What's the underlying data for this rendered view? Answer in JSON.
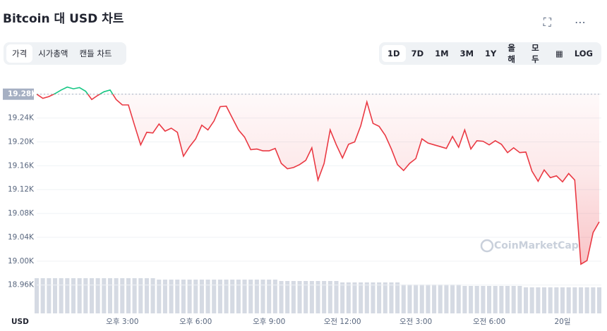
{
  "header": {
    "title": "Bitcoin 대 USD 차트",
    "tabs": [
      "가격",
      "시가총액",
      "캔들 차트"
    ],
    "ranges": [
      "1D",
      "7D",
      "1M",
      "3M",
      "1Y",
      "올해",
      "모두"
    ],
    "log": "LOG"
  },
  "chart_data": {
    "type": "line",
    "watermark": "CoinMarketCap",
    "y_unit": "USD",
    "categories": [
      null,
      null,
      null,
      null,
      null,
      null,
      null,
      null,
      null,
      null,
      null,
      null,
      null,
      null,
      "오후 3:00",
      null,
      null,
      null,
      null,
      null,
      null,
      null,
      null,
      null,
      null,
      null,
      "오후 6:00",
      null,
      null,
      null,
      null,
      null,
      null,
      null,
      null,
      null,
      null,
      null,
      "오후 9:00",
      null,
      null,
      null,
      null,
      null,
      null,
      null,
      null,
      null,
      null,
      null,
      "오전 12:00",
      null,
      null,
      null,
      null,
      null,
      null,
      null,
      null,
      null,
      null,
      null,
      "오전 3:00",
      null,
      null,
      null,
      null,
      null,
      null,
      null,
      null,
      null,
      null,
      null,
      "오전 6:00",
      null,
      null,
      null,
      null,
      null,
      null,
      null,
      null,
      null,
      null,
      null,
      "20일",
      null,
      null,
      null,
      null,
      null,
      null
    ],
    "values": [
      19280,
      19273,
      19276,
      19281,
      19287,
      19292,
      19289,
      19291,
      19285,
      19271,
      19278,
      19284,
      19287,
      19271,
      19262,
      19262,
      19228,
      19195,
      19216,
      19215,
      19230,
      19218,
      19223,
      19216,
      19176,
      19192,
      19205,
      19228,
      19220,
      19235,
      19259,
      19260,
      19240,
      19220,
      19208,
      19187,
      19188,
      19185,
      19185,
      19189,
      19164,
      19155,
      19157,
      19162,
      19169,
      19190,
      19136,
      19164,
      19220,
      19195,
      19173,
      19196,
      19200,
      19227,
      19267,
      19231,
      19226,
      19211,
      19188,
      19162,
      19152,
      19164,
      19172,
      19205,
      19198,
      19195,
      19192,
      19189,
      19209,
      19191,
      19220,
      19188,
      19202,
      19201,
      19195,
      19202,
      19196,
      19182,
      19190,
      19182,
      19183,
      19151,
      19134,
      19153,
      19140,
      19143,
      19133,
      19147,
      19136,
      18995,
      19001,
      19048,
      19066
    ],
    "volume": [
      50,
      50,
      50,
      50,
      50,
      50,
      50,
      50,
      50,
      50,
      50,
      50,
      50,
      50,
      50,
      50,
      50,
      50,
      50,
      50,
      48,
      48,
      48,
      48,
      48,
      48,
      48,
      48,
      48,
      48,
      48,
      48,
      48,
      48,
      48,
      48,
      48,
      48,
      48,
      48,
      46,
      46,
      46,
      46,
      46,
      46,
      46,
      46,
      46,
      46,
      44,
      44,
      44,
      44,
      44,
      44,
      44,
      44,
      44,
      44,
      41,
      41,
      41,
      41,
      41,
      41,
      41,
      41,
      41,
      41,
      39,
      39,
      39,
      39,
      39,
      39,
      39,
      39,
      39,
      39,
      37,
      37,
      37,
      37,
      37,
      37,
      37,
      37,
      37,
      37,
      37,
      37,
      37
    ],
    "volume_lim": [
      0,
      100
    ],
    "baseline": 19280,
    "up_color": "#16c784",
    "down_color": "#ea3943",
    "volume_color": "#d5dae3",
    "ylim": [
      18916,
      19308
    ],
    "yticks": [
      {
        "value": 19280,
        "label": "19.28K"
      },
      {
        "value": 19240,
        "label": "19.24K"
      },
      {
        "value": 19200,
        "label": "19.20K"
      },
      {
        "value": 19160,
        "label": "19.16K"
      },
      {
        "value": 19120,
        "label": "19.12K"
      },
      {
        "value": 19080,
        "label": "19.08K"
      },
      {
        "value": 19040,
        "label": "19.04K"
      },
      {
        "value": 19000,
        "label": "19.00K"
      },
      {
        "value": 18960,
        "label": "18.96K"
      }
    ],
    "grid": true
  }
}
